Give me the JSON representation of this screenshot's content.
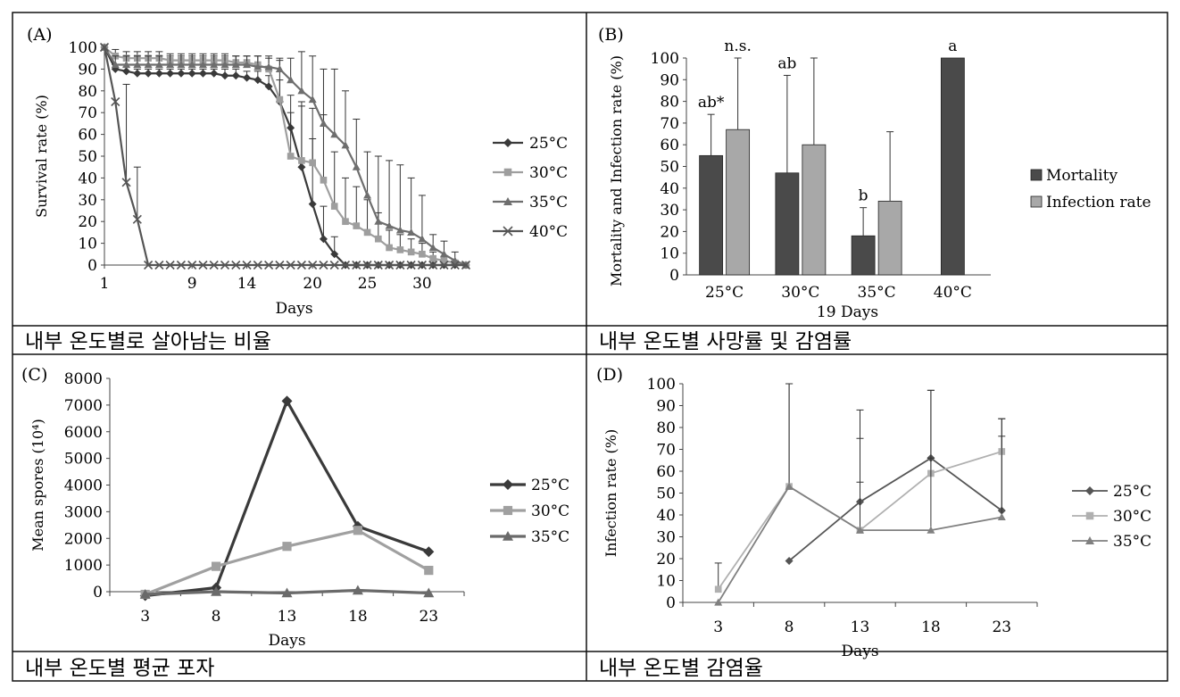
{
  "panels": [
    {
      "letter": "(A)",
      "caption": "내부 온도별로 살아남는 비율"
    },
    {
      "letter": "(B)",
      "caption": "내부 온도별 사망률 및 감염률"
    },
    {
      "letter": "(C)",
      "caption": "내부 온도별 평균 포자"
    },
    {
      "letter": "(D)",
      "caption": "내부 온도별 감염율"
    }
  ],
  "chart_data": [
    {
      "type": "line",
      "panel": "(A)",
      "xlabel": "Days",
      "ylabel": "Survival rate (%)",
      "xlim": [
        1,
        34
      ],
      "ylim": [
        0,
        100
      ],
      "xticks": [
        1,
        9,
        14,
        20,
        25,
        30
      ],
      "yticks": [
        0,
        10,
        20,
        30,
        40,
        50,
        60,
        70,
        80,
        90,
        100
      ],
      "legend_position": "right",
      "series": [
        {
          "name": "25°C",
          "marker": "diamond",
          "color": "#3a3a3a",
          "x": [
            1,
            2,
            3,
            4,
            5,
            6,
            7,
            8,
            9,
            10,
            11,
            12,
            13,
            14,
            15,
            16,
            17,
            18,
            19,
            20,
            21,
            22,
            23,
            24,
            25,
            26,
            27,
            28,
            29,
            30,
            31,
            32,
            33,
            34
          ],
          "y": [
            100,
            90,
            89,
            88,
            88,
            88,
            88,
            88,
            88,
            88,
            88,
            87,
            87,
            86,
            85,
            82,
            75,
            63,
            45,
            28,
            12,
            5,
            0,
            0,
            0,
            0,
            0,
            0,
            0,
            0,
            0,
            0,
            0,
            0
          ],
          "err": [
            0,
            2,
            2,
            2,
            2,
            2,
            2,
            2,
            2,
            2,
            2,
            3,
            3,
            3,
            4,
            5,
            10,
            15,
            30,
            30,
            15,
            8,
            0,
            0,
            0,
            0,
            0,
            0,
            0,
            0,
            0,
            0,
            0,
            0
          ]
        },
        {
          "name": "30°C",
          "marker": "square",
          "color": "#9e9e9e",
          "x": [
            1,
            2,
            3,
            4,
            5,
            6,
            7,
            8,
            9,
            10,
            11,
            12,
            13,
            14,
            15,
            16,
            17,
            18,
            19,
            20,
            21,
            22,
            23,
            24,
            25,
            26,
            27,
            28,
            29,
            30,
            31,
            32,
            33,
            34
          ],
          "y": [
            100,
            96,
            95,
            95,
            95,
            95,
            94,
            94,
            94,
            94,
            94,
            94,
            93,
            93,
            92,
            90,
            76,
            50,
            48,
            47,
            39,
            27,
            20,
            18,
            15,
            12,
            8,
            7,
            6,
            5,
            3,
            2,
            1,
            0
          ],
          "err": [
            0,
            3,
            3,
            3,
            3,
            3,
            3,
            3,
            3,
            3,
            3,
            3,
            3,
            3,
            4,
            5,
            18,
            20,
            25,
            25,
            30,
            25,
            20,
            18,
            15,
            12,
            8,
            7,
            6,
            5,
            3,
            2,
            1,
            0
          ]
        },
        {
          "name": "35°C",
          "marker": "triangle",
          "color": "#6e6e6e",
          "x": [
            1,
            2,
            3,
            4,
            5,
            6,
            7,
            8,
            9,
            10,
            11,
            12,
            13,
            14,
            15,
            16,
            17,
            18,
            19,
            20,
            21,
            22,
            23,
            24,
            25,
            26,
            27,
            28,
            29,
            30,
            31,
            32,
            33,
            34
          ],
          "y": [
            100,
            92,
            92,
            92,
            92,
            92,
            92,
            92,
            92,
            92,
            92,
            92,
            92,
            92,
            91,
            91,
            90,
            85,
            80,
            76,
            65,
            60,
            55,
            45,
            32,
            20,
            18,
            16,
            15,
            12,
            8,
            5,
            2,
            0
          ],
          "err": [
            0,
            4,
            4,
            4,
            4,
            4,
            4,
            4,
            4,
            4,
            4,
            4,
            4,
            4,
            5,
            5,
            5,
            10,
            18,
            20,
            25,
            30,
            25,
            22,
            20,
            30,
            30,
            30,
            25,
            20,
            6,
            6,
            4,
            0
          ]
        },
        {
          "name": "40°C",
          "marker": "x",
          "color": "#555555",
          "x": [
            1,
            2,
            3,
            4,
            5,
            6,
            7,
            8,
            9,
            10,
            11,
            12,
            13,
            14,
            15,
            16,
            17,
            18,
            19,
            20,
            21,
            22,
            23,
            24,
            25,
            26,
            27,
            28,
            29,
            30,
            31,
            32,
            33,
            34
          ],
          "y": [
            100,
            75,
            38,
            21,
            0,
            0,
            0,
            0,
            0,
            0,
            0,
            0,
            0,
            0,
            0,
            0,
            0,
            0,
            0,
            0,
            0,
            0,
            0,
            0,
            0,
            0,
            0,
            0,
            0,
            0,
            0,
            0,
            0,
            0
          ],
          "err": [
            0,
            0,
            45,
            24,
            0,
            0,
            0,
            0,
            0,
            0,
            0,
            0,
            0,
            0,
            0,
            0,
            0,
            0,
            0,
            0,
            0,
            0,
            0,
            0,
            0,
            0,
            0,
            0,
            0,
            0,
            0,
            0,
            0,
            0
          ]
        }
      ]
    },
    {
      "type": "bar",
      "panel": "(B)",
      "xlabel": "19 Days",
      "ylabel": "Mortality and Infection rate (%)",
      "categories": [
        "25°C",
        "30°C",
        "35°C",
        "40°C"
      ],
      "ylim": [
        0,
        100
      ],
      "yticks": [
        0,
        10,
        20,
        30,
        40,
        50,
        60,
        70,
        80,
        90,
        100
      ],
      "legend_position": "right",
      "series": [
        {
          "name": "Mortality",
          "color": "#4a4a4a",
          "values": [
            55,
            47,
            18,
            100
          ],
          "err": [
            19,
            45,
            13,
            0
          ]
        },
        {
          "name": "Infection rate",
          "color": "#a8a8a8",
          "values": [
            67,
            60,
            34,
            null
          ],
          "err": [
            33,
            40,
            32,
            null
          ]
        }
      ],
      "annotations": [
        {
          "text": "ab*",
          "category": "25°C",
          "series": "Mortality"
        },
        {
          "text": "n.s.",
          "category": "25°C",
          "series": "Infection rate"
        },
        {
          "text": "ab",
          "category": "30°C",
          "series": "Mortality"
        },
        {
          "text": "b",
          "category": "35°C",
          "series": "Mortality"
        },
        {
          "text": "a",
          "category": "40°C",
          "series": "Mortality"
        }
      ]
    },
    {
      "type": "line",
      "panel": "(C)",
      "xlabel": "Days",
      "ylabel": "Mean spores (10⁴)",
      "categories": [
        "3",
        "8",
        "13",
        "18",
        "23"
      ],
      "ylim": [
        0,
        8000
      ],
      "yticks": [
        0,
        1000,
        2000,
        3000,
        4000,
        5000,
        6000,
        7000,
        8000
      ],
      "legend_position": "right",
      "series": [
        {
          "name": "25°C",
          "marker": "diamond",
          "color": "#3a3a3a",
          "values": [
            -150,
            150,
            7150,
            2450,
            1500
          ]
        },
        {
          "name": "30°C",
          "marker": "square",
          "color": "#a0a0a0",
          "values": [
            -100,
            950,
            1700,
            2300,
            800
          ]
        },
        {
          "name": "35°C",
          "marker": "triangle",
          "color": "#6a6a6a",
          "values": [
            -100,
            0,
            -50,
            50,
            -50
          ]
        }
      ]
    },
    {
      "type": "line",
      "panel": "(D)",
      "xlabel": "Days",
      "ylabel": "Infection rate (%)",
      "categories": [
        "3",
        "8",
        "13",
        "18",
        "23"
      ],
      "ylim": [
        0,
        100
      ],
      "yticks": [
        0,
        10,
        20,
        30,
        40,
        50,
        60,
        70,
        80,
        90,
        100
      ],
      "legend_position": "right",
      "series": [
        {
          "name": "25°C",
          "marker": "diamond",
          "color": "#555555",
          "values": [
            null,
            19,
            46,
            66,
            42
          ],
          "err": [
            null,
            0,
            42,
            31,
            42
          ]
        },
        {
          "name": "30°C",
          "marker": "square",
          "color": "#b0b0b0",
          "values": [
            6,
            53,
            33,
            59,
            69
          ],
          "err": [
            12,
            47,
            42,
            38,
            15
          ]
        },
        {
          "name": "35°C",
          "marker": "triangle",
          "color": "#808080",
          "values": [
            0,
            53,
            33,
            33,
            39
          ],
          "err": [
            0,
            47,
            22,
            33,
            37
          ]
        }
      ]
    }
  ]
}
